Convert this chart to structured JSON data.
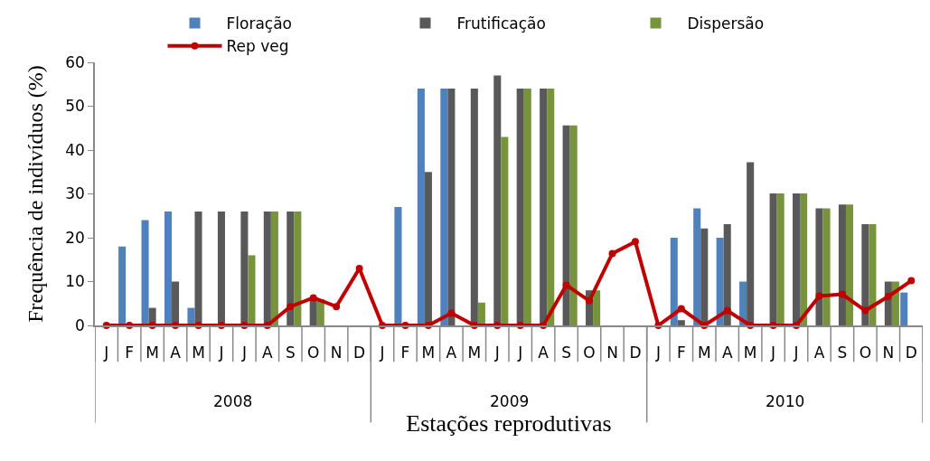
{
  "chart_data": {
    "type": "bar",
    "xlabel": "Estações reprodutivas",
    "ylabel": "Frequência de indivíduos (%)",
    "categories": [
      "J",
      "F",
      "M",
      "A",
      "M",
      "J",
      "J",
      "A",
      "S",
      "O",
      "N",
      "D",
      "J",
      "F",
      "M",
      "A",
      "M",
      "J",
      "J",
      "A",
      "S",
      "O",
      "N",
      "D",
      "J",
      "F",
      "M",
      "A",
      "M",
      "J",
      "J",
      "A",
      "S",
      "O",
      "N",
      "D"
    ],
    "series": [
      {
        "name": "Floração",
        "color": "#4f81bd",
        "values": [
          0,
          18,
          24,
          26,
          4,
          0,
          0,
          0,
          0,
          0,
          0,
          0,
          0,
          27,
          54,
          54,
          0,
          0,
          0,
          0,
          0,
          0,
          0,
          0,
          0,
          20,
          26.7,
          20,
          10,
          0,
          0,
          0,
          0,
          0,
          0,
          7.5
        ]
      },
      {
        "name": "Frutificação",
        "color": "#595959",
        "values": [
          0,
          0,
          4,
          10,
          26,
          26,
          26,
          26,
          26,
          6,
          0,
          0,
          0,
          0,
          35,
          54,
          54,
          57,
          54,
          54,
          45.6,
          8,
          0,
          0,
          0,
          1.2,
          22.1,
          23.1,
          37.2,
          30.1,
          30.1,
          26.7,
          27.6,
          23.1,
          10,
          0
        ]
      },
      {
        "name": "Dispersão",
        "color": "#77933c",
        "values": [
          0,
          0,
          0,
          0,
          0,
          0,
          16,
          26,
          26,
          6,
          0,
          0,
          0,
          0,
          0,
          0,
          5.2,
          43,
          54,
          54,
          45.6,
          8,
          0,
          0,
          0,
          0,
          0,
          0,
          0,
          30.1,
          30.1,
          26.7,
          27.6,
          23.1,
          10,
          0
        ]
      },
      {
        "name": "Rep veg",
        "type": "line",
        "color": "#c00000",
        "marker": "circle",
        "line_style": "solid",
        "values": [
          0,
          0,
          0,
          0,
          0,
          0,
          0,
          0,
          4.3,
          6.3,
          4.3,
          13,
          0,
          0,
          0,
          2.8,
          0,
          0,
          0,
          0,
          9.2,
          5.6,
          16.4,
          19.1,
          0,
          3.8,
          0,
          3.4,
          0,
          0,
          0,
          6.7,
          7.1,
          3.4,
          6.6,
          10.2
        ]
      }
    ],
    "annotations": [
      "2008",
      "2009",
      "2010"
    ],
    "ylim": [
      0,
      60
    ],
    "yticks": [
      0,
      10,
      20,
      30,
      40,
      50,
      60
    ],
    "grid": false,
    "legend": "top"
  }
}
